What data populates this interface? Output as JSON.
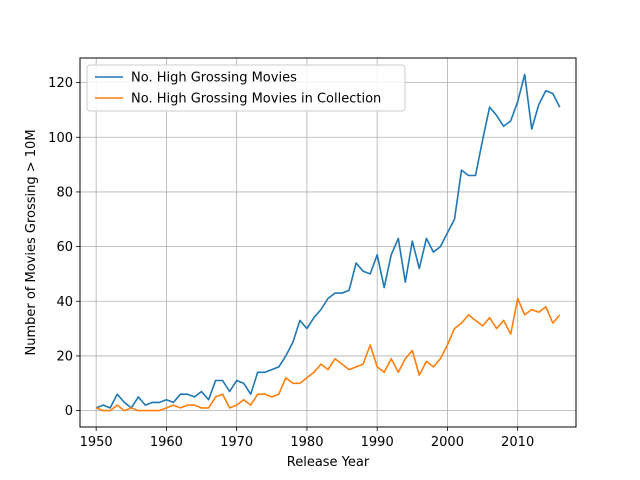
{
  "chart_data": {
    "type": "line",
    "xlabel": "Release Year",
    "ylabel": "Number of Movies Grossing > 10M",
    "xlim": [
      1947.7,
      2018.3
    ],
    "ylim": [
      -6,
      129
    ],
    "grid": true,
    "legend": "top-left",
    "xticks": [
      1950,
      1960,
      1970,
      1980,
      1990,
      2000,
      2010
    ],
    "yticks": [
      0,
      20,
      40,
      60,
      80,
      100,
      120
    ],
    "series": [
      {
        "name": "No. High Grossing Movies",
        "color": "#1f77b4",
        "x": [
          1950,
          1951,
          1952,
          1953,
          1954,
          1955,
          1956,
          1957,
          1958,
          1959,
          1960,
          1961,
          1962,
          1963,
          1964,
          1965,
          1966,
          1967,
          1968,
          1969,
          1970,
          1971,
          1972,
          1973,
          1974,
          1975,
          1976,
          1977,
          1978,
          1979,
          1980,
          1981,
          1982,
          1983,
          1984,
          1985,
          1986,
          1987,
          1988,
          1989,
          1990,
          1991,
          1992,
          1993,
          1994,
          1995,
          1996,
          1997,
          1998,
          1999,
          2000,
          2001,
          2002,
          2003,
          2004,
          2005,
          2006,
          2007,
          2008,
          2009,
          2010,
          2011,
          2012,
          2013,
          2014,
          2015,
          2016
        ],
        "values": [
          1,
          2,
          1,
          6,
          3,
          1,
          5,
          2,
          3,
          3,
          4,
          3,
          6,
          6,
          5,
          7,
          4,
          11,
          11,
          7,
          11,
          10,
          6,
          14,
          14,
          15,
          16,
          20,
          25,
          33,
          30,
          34,
          37,
          41,
          43,
          43,
          44,
          54,
          51,
          50,
          57,
          45,
          57,
          63,
          47,
          62,
          52,
          63,
          58,
          60,
          65,
          70,
          88,
          86,
          86,
          99,
          111,
          108,
          104,
          106,
          113,
          123,
          103,
          112,
          117,
          116,
          111
        ]
      },
      {
        "name": "No. High Grossing Movies in Collection",
        "color": "#ff7f0e",
        "x": [
          1950,
          1951,
          1952,
          1953,
          1954,
          1955,
          1956,
          1957,
          1958,
          1959,
          1960,
          1961,
          1962,
          1963,
          1964,
          1965,
          1966,
          1967,
          1968,
          1969,
          1970,
          1971,
          1972,
          1973,
          1974,
          1975,
          1976,
          1977,
          1978,
          1979,
          1980,
          1981,
          1982,
          1983,
          1984,
          1985,
          1986,
          1987,
          1988,
          1989,
          1990,
          1991,
          1992,
          1993,
          1994,
          1995,
          1996,
          1997,
          1998,
          1999,
          2000,
          2001,
          2002,
          2003,
          2004,
          2005,
          2006,
          2007,
          2008,
          2009,
          2010,
          2011,
          2012,
          2013,
          2014,
          2015,
          2016
        ],
        "values": [
          1,
          0,
          0,
          2,
          0,
          1,
          0,
          0,
          0,
          0,
          1,
          2,
          1,
          2,
          2,
          1,
          1,
          5,
          6,
          1,
          2,
          4,
          2,
          6,
          6,
          5,
          6,
          12,
          10,
          10,
          12,
          14,
          17,
          15,
          19,
          17,
          15,
          16,
          17,
          24,
          16,
          14,
          19,
          14,
          19,
          22,
          13,
          18,
          16,
          19,
          24,
          30,
          32,
          35,
          33,
          31,
          34,
          30,
          33,
          28,
          41,
          35,
          37,
          36,
          38,
          32,
          35
        ]
      }
    ]
  }
}
